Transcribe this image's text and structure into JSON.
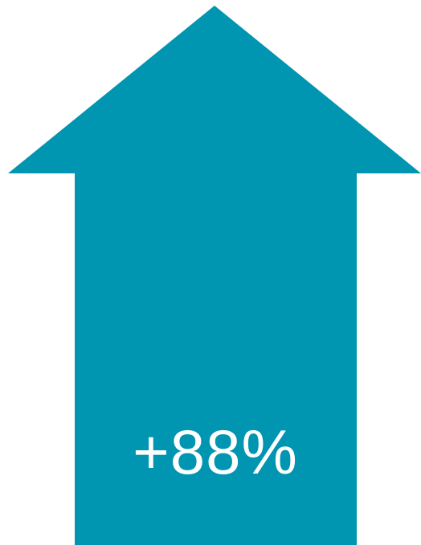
{
  "arrow": {
    "direction": "up",
    "color": "#0095B0",
    "label": "+88%",
    "label_color": "#ffffff"
  }
}
